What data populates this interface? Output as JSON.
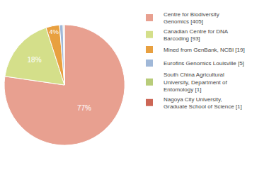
{
  "chart_data": {
    "type": "pie",
    "categories": [
      "Centre for Biodiversity\nGenomics [405]",
      "Canadian Centre for DNA\nBarcoding [93]",
      "Mined from GenBank, NCBI [19]",
      "Eurofins Genomics Louisville [5]",
      "South China Agricultural\nUniversity, Department of\nEntomology [1]",
      "Nagoya City University,\nGraduate School of Science [1]"
    ],
    "values": [
      77.29,
      17.75,
      3.63,
      0.95,
      0.19,
      0.19
    ],
    "value_labels": [
      "77%",
      "18%",
      "4%",
      null,
      null,
      null
    ],
    "colors": [
      "#e8a090",
      "#d4df8a",
      "#e8a040",
      "#a0b8d8",
      "#b8cc7a",
      "#cc6655"
    ],
    "data_labels": true,
    "legend": "upper right"
  }
}
